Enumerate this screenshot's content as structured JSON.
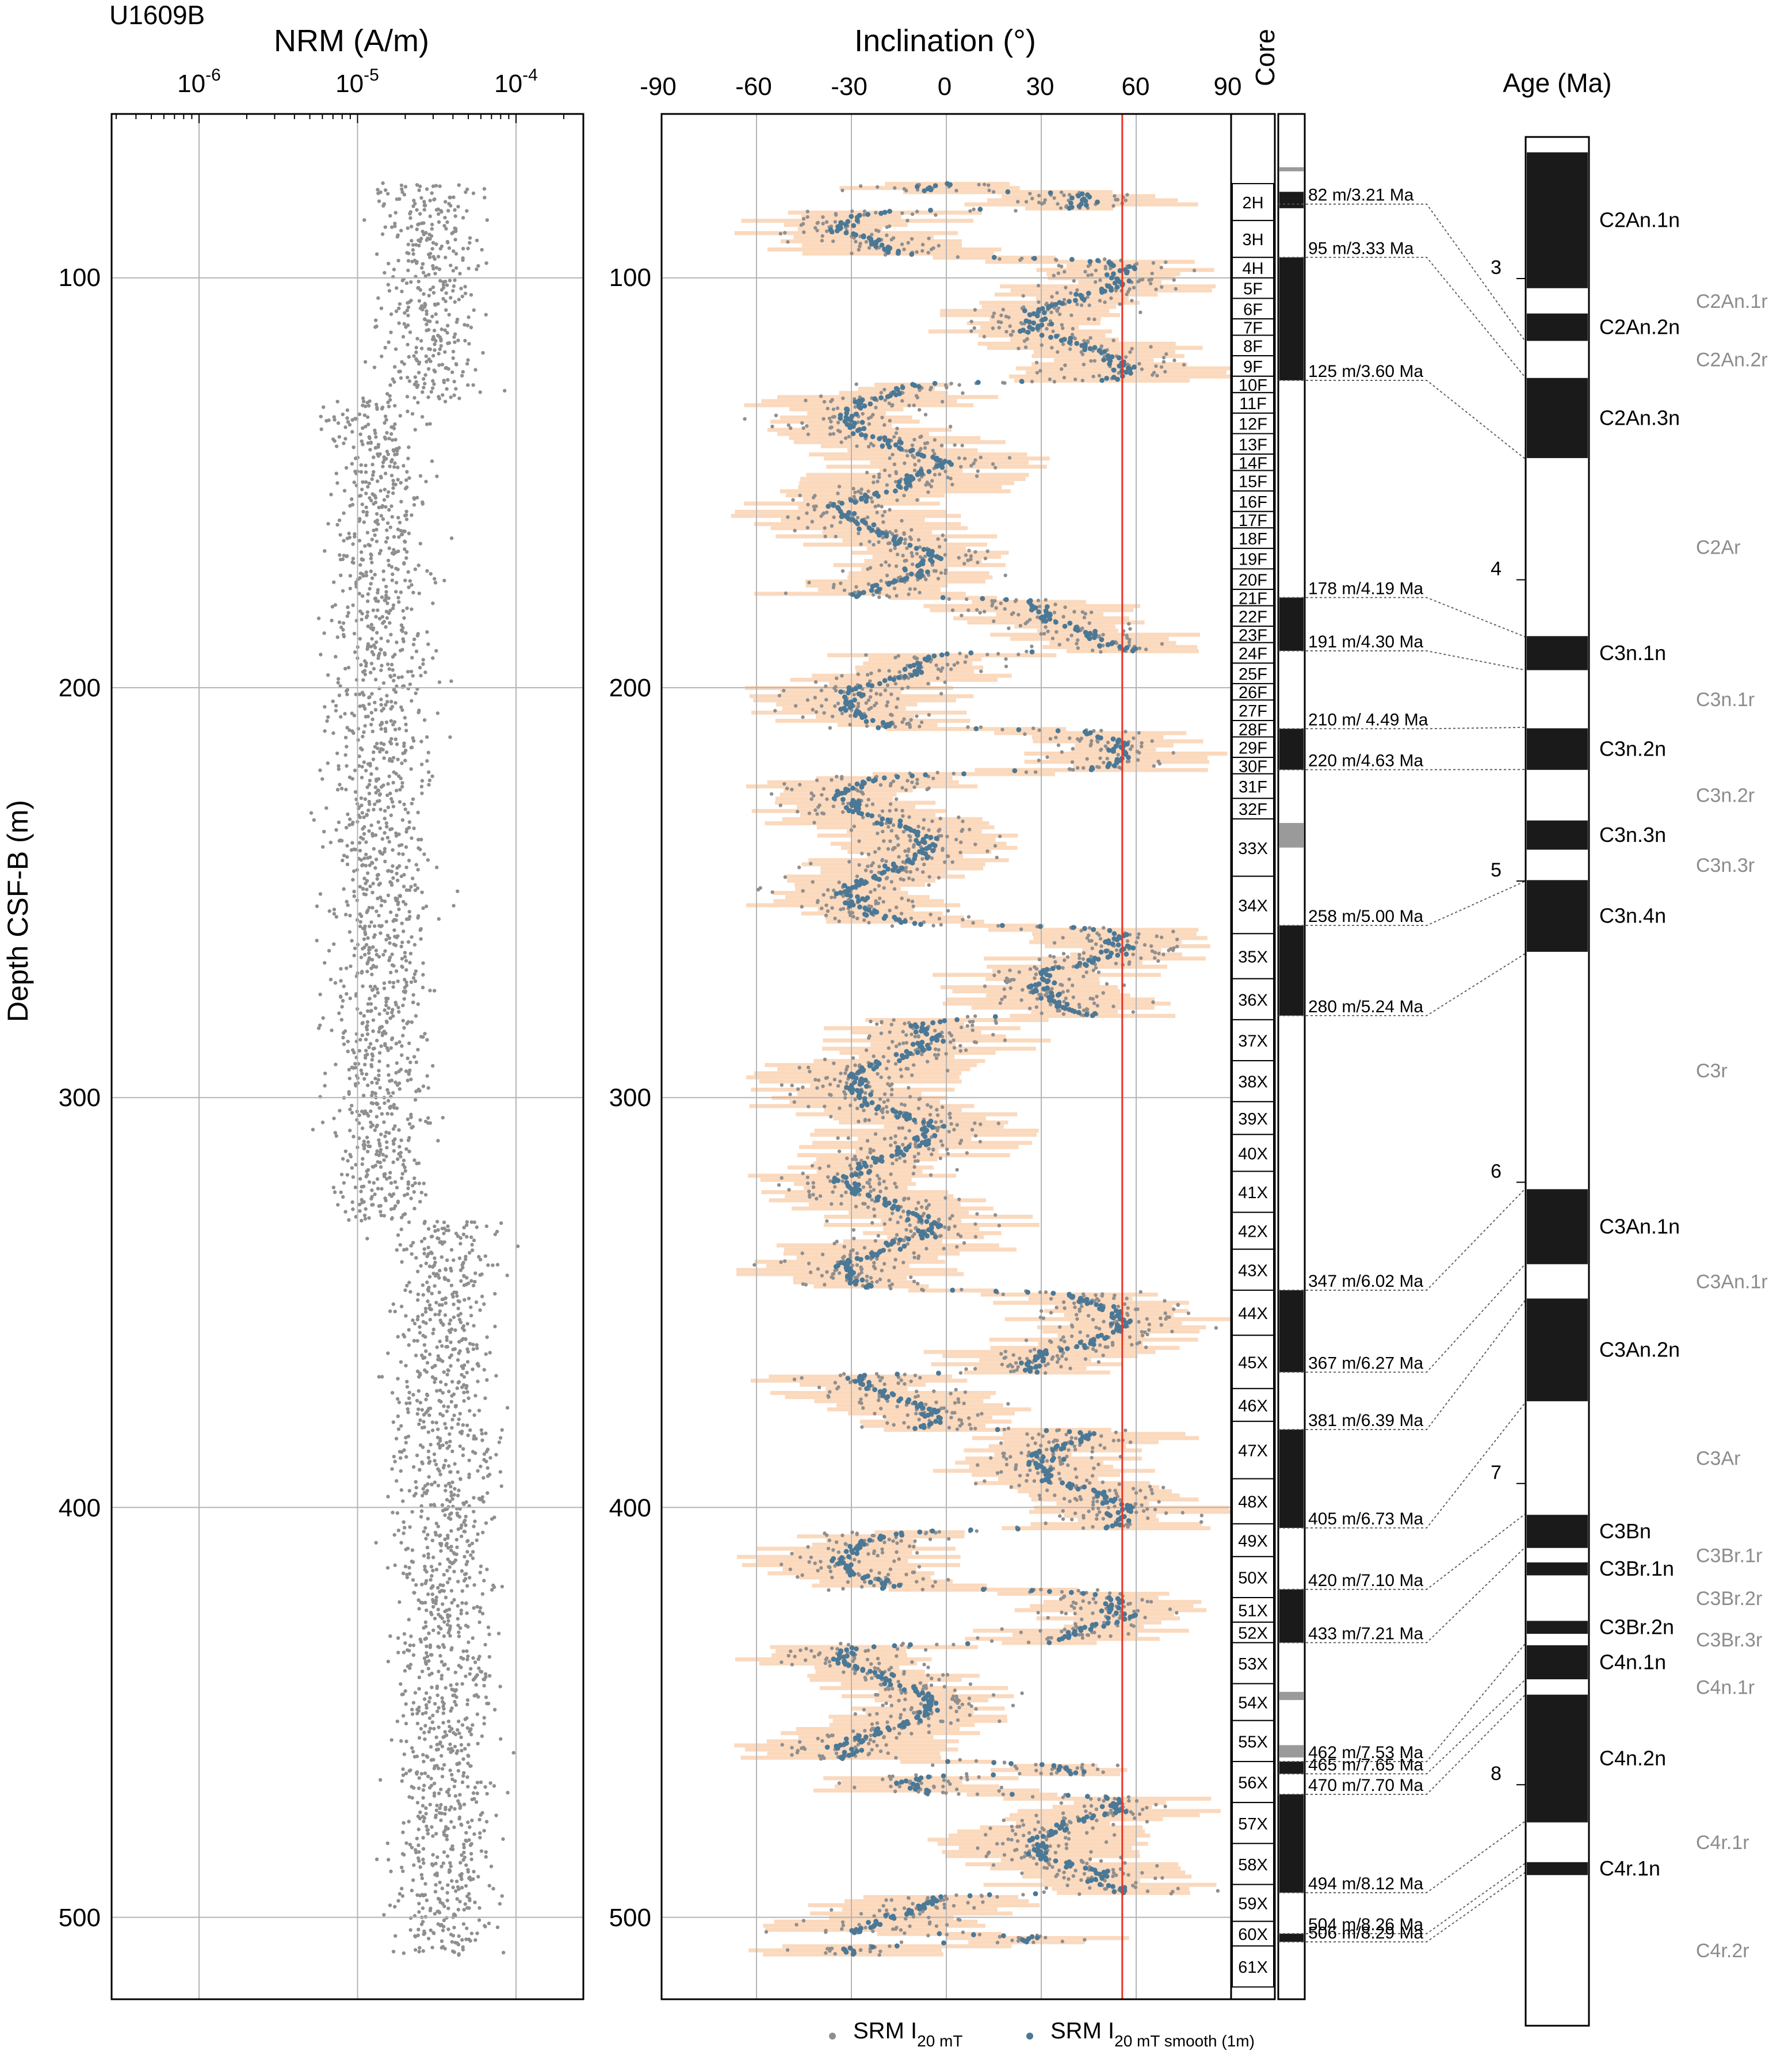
{
  "site_label": "U1609B",
  "depth_label": "Depth CSF-B (m)",
  "depth_ticks": [
    "100",
    "200",
    "300",
    "400",
    "500"
  ],
  "nrm": {
    "title": "NRM (A/m)",
    "tick_bases": [
      "10",
      "10",
      "10"
    ],
    "tick_exps": [
      "-6",
      "-5",
      "-4"
    ]
  },
  "inclination": {
    "title": "Inclination (°)",
    "ticks": [
      "-90",
      "-60",
      "-30",
      "0",
      "30",
      "60",
      "90"
    ],
    "reference_line": 55.6
  },
  "core_title": "Core",
  "age_title": "Age (Ma)",
  "age_ticks": [
    "3",
    "4",
    "5",
    "6",
    "7",
    "8"
  ],
  "legend": {
    "raw_base": "SRM I",
    "raw_sub": "20 mT",
    "smooth_base": "SRM I",
    "smooth_sub": "20 mT smooth (1m)"
  },
  "colors": {
    "raw": "#8f8f8f",
    "smooth": "#4a7896",
    "envelope": "#fbd9bd",
    "reference_line": "#e8332a",
    "grid": "#b5b5b5"
  },
  "chart_data": {
    "type": "scatter",
    "ylim": [
      520,
      60
    ],
    "cores": [
      "2H",
      "3H",
      "4H",
      "5F",
      "6F",
      "7F",
      "8F",
      "9F",
      "10F",
      "11F",
      "12F",
      "13F",
      "14F",
      "15F",
      "16F",
      "17F",
      "18F",
      "19F",
      "20F",
      "21F",
      "22F",
      "23F",
      "24F",
      "25F",
      "26F",
      "27F",
      "28F",
      "29F",
      "30F",
      "31F",
      "32F",
      "33X",
      "34X",
      "35X",
      "36X",
      "37X",
      "38X",
      "39X",
      "40X",
      "41X",
      "42X",
      "43X",
      "44X",
      "45X",
      "46X",
      "47X",
      "48X",
      "49X",
      "50X",
      "51X",
      "52X",
      "53X",
      "54X",
      "55X",
      "56X",
      "57X",
      "58X",
      "59X",
      "60X",
      "61X"
    ],
    "core_depths": [
      [
        77,
        86
      ],
      [
        86,
        95
      ],
      [
        95,
        100
      ],
      [
        100,
        105
      ],
      [
        105,
        110
      ],
      [
        110,
        114
      ],
      [
        114,
        119
      ],
      [
        119,
        124
      ],
      [
        124,
        128
      ],
      [
        128,
        133
      ],
      [
        133,
        138
      ],
      [
        138,
        143
      ],
      [
        143,
        147
      ],
      [
        147,
        152
      ],
      [
        152,
        157
      ],
      [
        157,
        161
      ],
      [
        161,
        166
      ],
      [
        166,
        171
      ],
      [
        171,
        176
      ],
      [
        176,
        180
      ],
      [
        180,
        185
      ],
      [
        185,
        189
      ],
      [
        189,
        194
      ],
      [
        194,
        199
      ],
      [
        199,
        203
      ],
      [
        203,
        208
      ],
      [
        208,
        212
      ],
      [
        212,
        217
      ],
      [
        217,
        221
      ],
      [
        221,
        227
      ],
      [
        227,
        232
      ],
      [
        232,
        246
      ],
      [
        246,
        260
      ],
      [
        260,
        271
      ],
      [
        271,
        281
      ],
      [
        281,
        291
      ],
      [
        291,
        301
      ],
      [
        301,
        309
      ],
      [
        309,
        318
      ],
      [
        318,
        328
      ],
      [
        328,
        337
      ],
      [
        337,
        347
      ],
      [
        347,
        358
      ],
      [
        358,
        371
      ],
      [
        371,
        379
      ],
      [
        379,
        393
      ],
      [
        393,
        404
      ],
      [
        404,
        412
      ],
      [
        412,
        422
      ],
      [
        422,
        428
      ],
      [
        428,
        433
      ],
      [
        433,
        443
      ],
      [
        443,
        452
      ],
      [
        452,
        462
      ],
      [
        462,
        472
      ],
      [
        472,
        482
      ],
      [
        482,
        492
      ],
      [
        492,
        501
      ],
      [
        501,
        507
      ],
      [
        507,
        517
      ]
    ],
    "polarity_column": {
      "normal": [
        [
          79,
          83
        ],
        [
          95,
          125
        ],
        [
          178,
          191
        ],
        [
          210,
          220
        ],
        [
          258,
          280
        ],
        [
          347,
          367
        ],
        [
          381,
          405
        ],
        [
          420,
          433
        ],
        [
          462,
          465
        ],
        [
          470,
          494
        ],
        [
          504,
          506
        ]
      ],
      "gap": [
        [
          73,
          74
        ],
        [
          233,
          239
        ],
        [
          445,
          447
        ],
        [
          458,
          461
        ]
      ]
    },
    "tie_points": [
      {
        "label": "82 m/3.21 Ma",
        "depth": 82,
        "age": 3.21
      },
      {
        "label": "95 m/3.33 Ma",
        "depth": 95,
        "age": 3.33
      },
      {
        "label": "125 m/3.60 Ma",
        "depth": 125,
        "age": 3.6
      },
      {
        "label": "178 m/4.19 Ma",
        "depth": 178,
        "age": 4.19
      },
      {
        "label": "191 m/4.30 Ma",
        "depth": 191,
        "age": 4.3
      },
      {
        "label": "210 m/ 4.49 Ma",
        "depth": 210,
        "age": 4.49
      },
      {
        "label": "220 m/4.63 Ma",
        "depth": 220,
        "age": 4.63
      },
      {
        "label": "258 m/5.00 Ma",
        "depth": 258,
        "age": 5.0
      },
      {
        "label": "280 m/5.24 Ma",
        "depth": 280,
        "age": 5.24
      },
      {
        "label": "347 m/6.02 Ma",
        "depth": 347,
        "age": 6.02
      },
      {
        "label": "367 m/6.27 Ma",
        "depth": 367,
        "age": 6.27
      },
      {
        "label": "381 m/6.39 Ma",
        "depth": 381,
        "age": 6.39
      },
      {
        "label": "405 m/6.73 Ma",
        "depth": 405,
        "age": 6.73
      },
      {
        "label": "420 m/7.10 Ma",
        "depth": 420,
        "age": 7.1
      },
      {
        "label": "433 m/7.21 Ma",
        "depth": 433,
        "age": 7.21
      },
      {
        "label": "462 m/7.53 Ma",
        "depth": 462,
        "age": 7.53
      },
      {
        "label": "465 m/7.65 Ma",
        "depth": 465,
        "age": 7.65
      },
      {
        "label": "470 m/7.70 Ma",
        "depth": 470,
        "age": 7.7
      },
      {
        "label": "494 m/8.12 Ma",
        "depth": 494,
        "age": 8.12
      },
      {
        "label": "504 m/8.26 Ma",
        "depth": 504,
        "age": 8.26
      },
      {
        "label": "506 m/8.29 Ma",
        "depth": 506,
        "age": 8.29
      }
    ],
    "age_ylim": [
      2.53,
      8.8
    ],
    "chrons": [
      {
        "name": "C2An.1n",
        "top": 2.581,
        "base": 3.032,
        "polarity": "normal"
      },
      {
        "name": "C2An.1r",
        "top": 3.032,
        "base": 3.116,
        "polarity": "reversed"
      },
      {
        "name": "C2An.2n",
        "top": 3.116,
        "base": 3.207,
        "polarity": "normal"
      },
      {
        "name": "C2An.2r",
        "top": 3.207,
        "base": 3.33,
        "polarity": "reversed"
      },
      {
        "name": "C2An.3n",
        "top": 3.33,
        "base": 3.596,
        "polarity": "normal"
      },
      {
        "name": "C2Ar",
        "top": 3.596,
        "base": 4.187,
        "polarity": "reversed"
      },
      {
        "name": "C3n.1n",
        "top": 4.187,
        "base": 4.3,
        "polarity": "normal"
      },
      {
        "name": "C3n.1r",
        "top": 4.3,
        "base": 4.493,
        "polarity": "reversed"
      },
      {
        "name": "C3n.2n",
        "top": 4.493,
        "base": 4.631,
        "polarity": "normal"
      },
      {
        "name": "C3n.2r",
        "top": 4.631,
        "base": 4.799,
        "polarity": "reversed"
      },
      {
        "name": "C3n.3n",
        "top": 4.799,
        "base": 4.896,
        "polarity": "normal"
      },
      {
        "name": "C3n.3r",
        "top": 4.896,
        "base": 4.997,
        "polarity": "reversed"
      },
      {
        "name": "C3n.4n",
        "top": 4.997,
        "base": 5.235,
        "polarity": "normal"
      },
      {
        "name": "C3r",
        "top": 5.235,
        "base": 6.023,
        "polarity": "reversed"
      },
      {
        "name": "C3An.1n",
        "top": 6.023,
        "base": 6.272,
        "polarity": "normal"
      },
      {
        "name": "C3An.1r",
        "top": 6.272,
        "base": 6.386,
        "polarity": "reversed"
      },
      {
        "name": "C3An.2n",
        "top": 6.386,
        "base": 6.727,
        "polarity": "normal"
      },
      {
        "name": "C3Ar",
        "top": 6.727,
        "base": 7.104,
        "polarity": "reversed"
      },
      {
        "name": "C3Bn",
        "top": 7.104,
        "base": 7.214,
        "polarity": "normal"
      },
      {
        "name": "C3Br.1r",
        "top": 7.214,
        "base": 7.262,
        "polarity": "reversed"
      },
      {
        "name": "C3Br.1n",
        "top": 7.262,
        "base": 7.305,
        "polarity": "normal"
      },
      {
        "name": "C3Br.2r",
        "top": 7.305,
        "base": 7.456,
        "polarity": "reversed"
      },
      {
        "name": "C3Br.2n",
        "top": 7.456,
        "base": 7.499,
        "polarity": "normal"
      },
      {
        "name": "C3Br.3r",
        "top": 7.499,
        "base": 7.537,
        "polarity": "reversed"
      },
      {
        "name": "C4n.1n",
        "top": 7.537,
        "base": 7.65,
        "polarity": "normal"
      },
      {
        "name": "C4n.1r",
        "top": 7.65,
        "base": 7.701,
        "polarity": "reversed"
      },
      {
        "name": "C4n.2n",
        "top": 7.701,
        "base": 8.125,
        "polarity": "normal"
      },
      {
        "name": "C4r.1r",
        "top": 8.125,
        "base": 8.257,
        "polarity": "reversed"
      },
      {
        "name": "C4r.1n",
        "top": 8.257,
        "base": 8.3,
        "polarity": "normal"
      },
      {
        "name": "C4r.2r",
        "top": 8.3,
        "base": 8.8,
        "polarity": "reversed"
      }
    ]
  }
}
